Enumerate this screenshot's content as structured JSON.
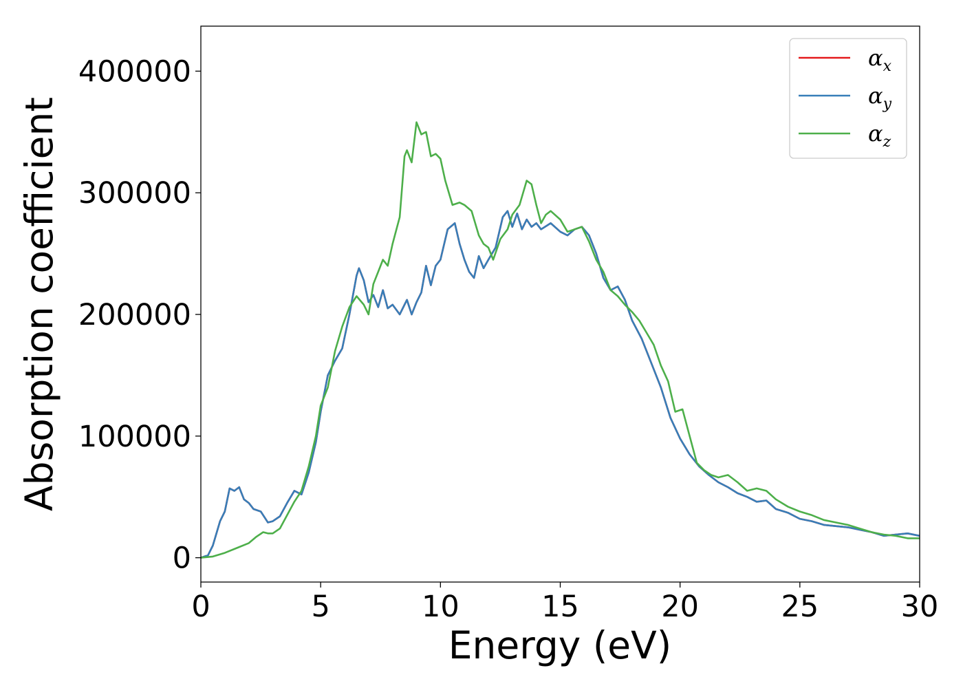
{
  "chart_data": {
    "type": "line",
    "xlabel": "Energy (eV)",
    "ylabel": "Absorption coefficient",
    "xlim": [
      0,
      30
    ],
    "ylim": [
      -20000,
      437000
    ],
    "xticks": [
      0,
      5,
      10,
      15,
      20,
      25,
      30
    ],
    "xtick_labels": [
      "0",
      "5",
      "10",
      "15",
      "20",
      "25",
      "30"
    ],
    "yticks": [
      0,
      100000,
      200000,
      300000,
      400000
    ],
    "ytick_labels": [
      "0",
      "100000",
      "200000",
      "300000",
      "400000"
    ],
    "grid": false,
    "legend_position": "top-right",
    "series": [
      {
        "name": "α",
        "subscript": "x",
        "color": "#e41a1c",
        "x": [
          0,
          0.3,
          0.5,
          0.8,
          1.0,
          1.2,
          1.4,
          1.6,
          1.8,
          2.0,
          2.2,
          2.5,
          2.8,
          3.0,
          3.3,
          3.6,
          3.9,
          4.2,
          4.5,
          4.8,
          5.0,
          5.3,
          5.6,
          5.9,
          6.2,
          6.5,
          6.6,
          6.8,
          7.0,
          7.2,
          7.4,
          7.6,
          7.8,
          8.0,
          8.3,
          8.6,
          8.8,
          9.0,
          9.2,
          9.4,
          9.6,
          9.8,
          10.0,
          10.3,
          10.6,
          10.8,
          11.0,
          11.2,
          11.4,
          11.6,
          11.8,
          12.0,
          12.3,
          12.6,
          12.8,
          13.0,
          13.2,
          13.4,
          13.6,
          13.8,
          14.0,
          14.2,
          14.6,
          15.0,
          15.3,
          15.6,
          15.9,
          16.2,
          16.5,
          16.8,
          17.1,
          17.4,
          17.7,
          18.0,
          18.4,
          18.8,
          19.2,
          19.6,
          20.0,
          20.4,
          20.8,
          21.2,
          21.6,
          22.0,
          22.4,
          22.8,
          23.2,
          23.6,
          24.0,
          24.5,
          25.0,
          25.5,
          26.0,
          26.5,
          27.0,
          27.5,
          28.0,
          28.5,
          29.0,
          29.5,
          30.0
        ],
        "values": [
          0,
          2000,
          10000,
          30000,
          38000,
          57000,
          55000,
          58000,
          48000,
          45000,
          40000,
          38000,
          29000,
          30000,
          34000,
          45000,
          55000,
          52000,
          70000,
          95000,
          120000,
          150000,
          162000,
          172000,
          200000,
          232000,
          238000,
          228000,
          210000,
          216000,
          206000,
          220000,
          205000,
          208000,
          200000,
          212000,
          200000,
          210000,
          218000,
          240000,
          224000,
          240000,
          245000,
          270000,
          275000,
          258000,
          245000,
          235000,
          230000,
          248000,
          238000,
          245000,
          255000,
          280000,
          285000,
          272000,
          283000,
          270000,
          278000,
          272000,
          275000,
          270000,
          275000,
          268000,
          265000,
          270000,
          272000,
          265000,
          250000,
          230000,
          220000,
          223000,
          212000,
          195000,
          180000,
          160000,
          140000,
          115000,
          98000,
          85000,
          75000,
          68000,
          62000,
          58000,
          53000,
          50000,
          46000,
          47000,
          40000,
          37000,
          32000,
          30000,
          27000,
          26000,
          25000,
          23000,
          21000,
          18000,
          19000,
          20000,
          18000
        ]
      },
      {
        "name": "α",
        "subscript": "y",
        "color": "#377eb8",
        "x": [
          0,
          0.3,
          0.5,
          0.8,
          1.0,
          1.2,
          1.4,
          1.6,
          1.8,
          2.0,
          2.2,
          2.5,
          2.8,
          3.0,
          3.3,
          3.6,
          3.9,
          4.2,
          4.5,
          4.8,
          5.0,
          5.3,
          5.6,
          5.9,
          6.2,
          6.5,
          6.6,
          6.8,
          7.0,
          7.2,
          7.4,
          7.6,
          7.8,
          8.0,
          8.3,
          8.6,
          8.8,
          9.0,
          9.2,
          9.4,
          9.6,
          9.8,
          10.0,
          10.3,
          10.6,
          10.8,
          11.0,
          11.2,
          11.4,
          11.6,
          11.8,
          12.0,
          12.3,
          12.6,
          12.8,
          13.0,
          13.2,
          13.4,
          13.6,
          13.8,
          14.0,
          14.2,
          14.6,
          15.0,
          15.3,
          15.6,
          15.9,
          16.2,
          16.5,
          16.8,
          17.1,
          17.4,
          17.7,
          18.0,
          18.4,
          18.8,
          19.2,
          19.6,
          20.0,
          20.4,
          20.8,
          21.2,
          21.6,
          22.0,
          22.4,
          22.8,
          23.2,
          23.6,
          24.0,
          24.5,
          25.0,
          25.5,
          26.0,
          26.5,
          27.0,
          27.5,
          28.0,
          28.5,
          29.0,
          29.5,
          30.0
        ],
        "values": [
          0,
          2000,
          10000,
          30000,
          38000,
          57000,
          55000,
          58000,
          48000,
          45000,
          40000,
          38000,
          29000,
          30000,
          34000,
          45000,
          55000,
          52000,
          70000,
          95000,
          120000,
          150000,
          162000,
          172000,
          200000,
          232000,
          238000,
          228000,
          210000,
          216000,
          206000,
          220000,
          205000,
          208000,
          200000,
          212000,
          200000,
          210000,
          218000,
          240000,
          224000,
          240000,
          245000,
          270000,
          275000,
          258000,
          245000,
          235000,
          230000,
          248000,
          238000,
          245000,
          255000,
          280000,
          285000,
          272000,
          283000,
          270000,
          278000,
          272000,
          275000,
          270000,
          275000,
          268000,
          265000,
          270000,
          272000,
          265000,
          250000,
          230000,
          220000,
          223000,
          212000,
          195000,
          180000,
          160000,
          140000,
          115000,
          98000,
          85000,
          75000,
          68000,
          62000,
          58000,
          53000,
          50000,
          46000,
          47000,
          40000,
          37000,
          32000,
          30000,
          27000,
          26000,
          25000,
          23000,
          21000,
          18000,
          19000,
          20000,
          18000
        ]
      },
      {
        "name": "α",
        "subscript": "z",
        "color": "#4daf4a",
        "x": [
          0,
          0.5,
          1.0,
          1.5,
          2.0,
          2.3,
          2.6,
          2.8,
          3.0,
          3.3,
          3.6,
          3.9,
          4.2,
          4.5,
          4.8,
          5.0,
          5.3,
          5.6,
          5.9,
          6.2,
          6.5,
          6.8,
          7.0,
          7.2,
          7.4,
          7.6,
          7.8,
          8.0,
          8.3,
          8.5,
          8.6,
          8.8,
          9.0,
          9.2,
          9.4,
          9.6,
          9.8,
          10.0,
          10.2,
          10.5,
          10.8,
          11.0,
          11.3,
          11.6,
          11.8,
          12.0,
          12.2,
          12.5,
          12.8,
          13.0,
          13.3,
          13.6,
          13.8,
          14.0,
          14.2,
          14.4,
          14.6,
          15.0,
          15.3,
          15.6,
          15.9,
          16.2,
          16.5,
          16.8,
          17.1,
          17.4,
          17.7,
          18.0,
          18.3,
          18.6,
          18.9,
          19.2,
          19.5,
          19.8,
          20.1,
          20.4,
          20.7,
          21.0,
          21.3,
          21.6,
          22.0,
          22.4,
          22.8,
          23.2,
          23.6,
          24.0,
          24.5,
          25.0,
          25.5,
          26.0,
          26.5,
          27.0,
          27.5,
          28.0,
          28.5,
          29.0,
          29.5,
          30.0
        ],
        "values": [
          0,
          1000,
          4000,
          8000,
          12000,
          17000,
          21000,
          20000,
          20000,
          24000,
          35000,
          46000,
          55000,
          75000,
          100000,
          125000,
          140000,
          170000,
          190000,
          206000,
          215000,
          208000,
          200000,
          225000,
          235000,
          245000,
          240000,
          258000,
          280000,
          330000,
          335000,
          325000,
          358000,
          348000,
          350000,
          330000,
          332000,
          328000,
          310000,
          290000,
          292000,
          290000,
          285000,
          265000,
          258000,
          255000,
          245000,
          262000,
          270000,
          282000,
          290000,
          310000,
          307000,
          290000,
          275000,
          282000,
          285000,
          278000,
          268000,
          270000,
          272000,
          260000,
          245000,
          235000,
          220000,
          215000,
          208000,
          202000,
          195000,
          185000,
          175000,
          158000,
          145000,
          120000,
          122000,
          100000,
          78000,
          72000,
          68000,
          66000,
          68000,
          62000,
          55000,
          57000,
          55000,
          48000,
          42000,
          38000,
          35000,
          31000,
          29000,
          27000,
          24000,
          21000,
          19000,
          18000,
          16000,
          16000
        ]
      }
    ]
  }
}
